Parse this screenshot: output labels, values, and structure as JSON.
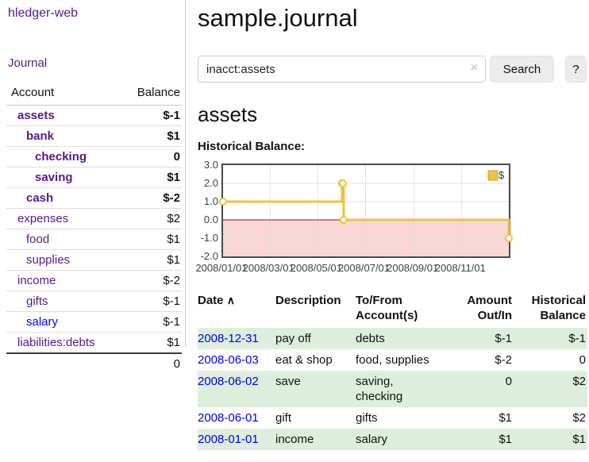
{
  "app": {
    "brand": "hledger-web",
    "nav": {
      "journal": "Journal"
    }
  },
  "colors": {
    "link_visited_purple": "#551A8B",
    "link_blue": "#0000EE",
    "negative_red": "#8e1a1a",
    "negative_dim_red": "#bb7b7b",
    "row_green": "#ddeedd",
    "chart_gold": "#EDC240",
    "chart_negative_fill": "#f9d7d7",
    "chart_zero_line": "#991111"
  },
  "icons": {
    "clear_icon": "×",
    "sort_asc_icon": "∧",
    "help_icon": "?"
  },
  "sidebar": {
    "headers": {
      "account": "Account",
      "balance": "Balance"
    },
    "rows": [
      {
        "name": "assets",
        "balance": "$-1"
      },
      {
        "name": "bank",
        "balance": "$1"
      },
      {
        "name": "checking",
        "balance": "0"
      },
      {
        "name": "saving",
        "balance": "$1"
      },
      {
        "name": "cash",
        "balance": "$-2"
      },
      {
        "name": "expenses",
        "balance": "$2"
      },
      {
        "name": "food",
        "balance": "$1"
      },
      {
        "name": "supplies",
        "balance": "$1"
      },
      {
        "name": "income",
        "balance": "$-2"
      },
      {
        "name": "gifts",
        "balance": "$-1"
      },
      {
        "name": "salary",
        "balance": "$-1"
      },
      {
        "name": "liabilities:debts",
        "balance": "$1"
      }
    ],
    "total": "0"
  },
  "main": {
    "title": "sample.journal",
    "search": {
      "value": "inacct:assets",
      "button": "Search",
      "help": "?"
    },
    "account_heading": "assets",
    "chart_label": "Historical Balance:"
  },
  "register": {
    "headers": [
      "Date",
      "Description",
      "To/From Account(s)",
      "Amount Out/In",
      "Historical Balance"
    ],
    "rows": [
      {
        "date": "2008-12-31",
        "description": "pay off",
        "accounts": "debts",
        "amount": "$-1",
        "balance": "$-1"
      },
      {
        "date": "2008-06-03",
        "description": "eat & shop",
        "accounts": "food, supplies",
        "amount": "$-2",
        "balance": "0"
      },
      {
        "date": "2008-06-02",
        "description": "save",
        "accounts": "saving,\nchecking",
        "amount": "0",
        "balance": "$2"
      },
      {
        "date": "2008-06-01",
        "description": "gift",
        "accounts": "gifts",
        "amount": "$1",
        "balance": "$2"
      },
      {
        "date": "2008-01-01",
        "description": "income",
        "accounts": "salary",
        "amount": "$1",
        "balance": "$1"
      }
    ]
  },
  "chart_data": {
    "type": "line",
    "title": "Historical Balance",
    "step": true,
    "series": [
      {
        "name": "$",
        "color": "#EDC240",
        "points": [
          [
            "2008-01-01",
            1
          ],
          [
            "2008-06-01",
            2
          ],
          [
            "2008-06-02",
            2
          ],
          [
            "2008-06-03",
            0
          ],
          [
            "2008-12-31",
            -1
          ]
        ]
      }
    ],
    "xrange": [
      "2008-01-01",
      "2008-12-31"
    ],
    "ylim": [
      -2,
      3
    ],
    "yticks": [
      "3.0",
      "2.0",
      "1.0",
      "0.0",
      "-1.0",
      "-2.0"
    ],
    "xticks": [
      "2008/01/01",
      "2008/03/01",
      "2008/05/01",
      "2008/07/01",
      "2008/09/01",
      "2008/11/01"
    ],
    "grid": true,
    "legend_position": "top-right",
    "negative_region_shaded": true
  }
}
